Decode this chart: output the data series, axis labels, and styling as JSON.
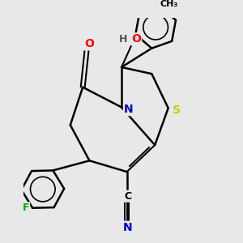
{
  "background_color": "#e8e8e8",
  "bond_color": "#000000",
  "figsize": [
    3.0,
    3.0
  ],
  "dpi": 100,
  "atom_colors": {
    "N": "#0000cc",
    "O": "#ff0000",
    "S": "#cccc00",
    "F": "#00aa00",
    "C": "#000000",
    "H": "#555555"
  },
  "xlim": [
    -2.2,
    2.2
  ],
  "ylim": [
    -2.5,
    2.5
  ]
}
